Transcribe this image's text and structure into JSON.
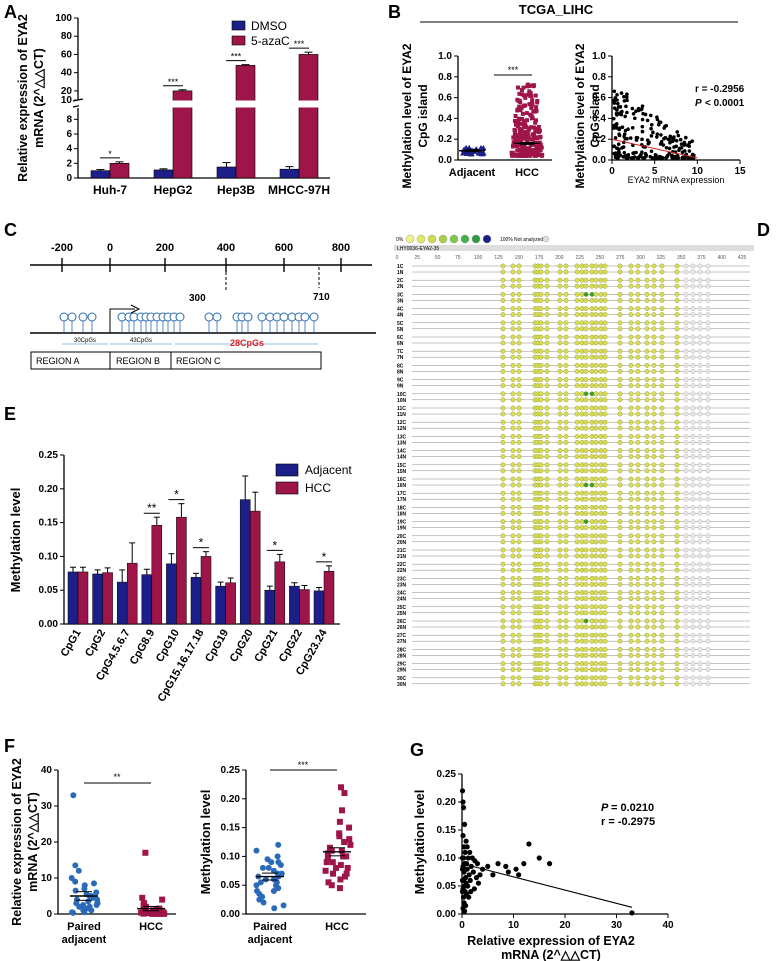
{
  "panel_labels": [
    "A",
    "B",
    "C",
    "D",
    "E",
    "F",
    "G"
  ],
  "colors": {
    "blue": "#1c1f8a",
    "red": "#9e1549",
    "dot_fill": "#d9dd55",
    "dot_edge": "#8a8f2a",
    "green": "#33a02c",
    "grey": "#bbbbbb"
  },
  "chart_data": [
    {
      "id": "A",
      "type": "bar",
      "categories": [
        "Huh-7",
        "HepG2",
        "Hep3B",
        "MHCC-97H"
      ],
      "series": [
        {
          "name": "DMSO",
          "values": [
            1.0,
            1.1,
            1.5,
            1.2
          ],
          "errors": [
            0.15,
            0.15,
            0.6,
            0.35
          ]
        },
        {
          "name": "5-azaC",
          "values": [
            2.0,
            20,
            48,
            60
          ],
          "errors": [
            0.2,
            1.2,
            0.8,
            2.5
          ]
        }
      ],
      "significance": [
        "*",
        "***",
        "***",
        "***"
      ],
      "ylabel": "Relative expression of EYA2 mRNA (2^△△CT)",
      "yticks_low": [
        "0",
        "2",
        "4",
        "6",
        "8"
      ],
      "yticks_high": [
        "10",
        "20",
        "40",
        "60",
        "80",
        "100"
      ],
      "axis_break": [
        8,
        10
      ],
      "ylim": [
        0,
        100
      ]
    },
    {
      "id": "B1",
      "type": "scatter",
      "title": "TCGA_LIHC",
      "categories": [
        "Adjacent",
        "HCC"
      ],
      "means": [
        0.09,
        0.16
      ],
      "sems": [
        0.01,
        0.01
      ],
      "ylabel": "Methylation level of EYA2 CpG island",
      "yticks": [
        "0.0",
        "0.2",
        "0.4",
        "0.6",
        "0.8",
        "1.0"
      ],
      "ylim": [
        0,
        1.0
      ],
      "significance": "***"
    },
    {
      "id": "B2",
      "type": "scatter",
      "xlabel": "EYA2 mRNA expression",
      "ylabel": "Methylation level of EYA2 CpG island",
      "xticks": [
        "0",
        "5",
        "10",
        "15"
      ],
      "yticks": [
        "0.0",
        "0.2",
        "0.4",
        "0.6",
        "0.8",
        "1.0"
      ],
      "xlim": [
        0,
        15
      ],
      "ylim": [
        0,
        1.0
      ],
      "fit_line": [
        [
          0,
          0.2
        ],
        [
          10,
          0.02
        ]
      ],
      "stat_r": "r = -0.2956",
      "stat_p_label": "P",
      "stat_p_value": "< 0.0001"
    },
    {
      "id": "E",
      "type": "bar",
      "categories": [
        "CpG1",
        "CpG2",
        "CpG4.5.6.7",
        "CpG8.9",
        "CpG10",
        "CpG15.16.17.18",
        "CpG19",
        "CpG20",
        "CpG21",
        "CpG22",
        "CpG23.24"
      ],
      "series": [
        {
          "name": "Adjacent",
          "values": [
            0.077,
            0.074,
            0.062,
            0.073,
            0.089,
            0.069,
            0.056,
            0.184,
            0.05,
            0.056,
            0.049
          ],
          "errors": [
            0.007,
            0.006,
            0.018,
            0.008,
            0.015,
            0.006,
            0.006,
            0.035,
            0.006,
            0.005,
            0.005
          ]
        },
        {
          "name": "HCC",
          "values": [
            0.077,
            0.076,
            0.09,
            0.146,
            0.158,
            0.1,
            0.061,
            0.167,
            0.092,
            0.051,
            0.078
          ],
          "errors": [
            0.007,
            0.007,
            0.03,
            0.012,
            0.02,
            0.007,
            0.007,
            0.028,
            0.011,
            0.006,
            0.008
          ]
        }
      ],
      "significance": [
        "",
        "",
        "",
        "**",
        "*",
        "*",
        "",
        "",
        "*",
        "",
        "*"
      ],
      "ylabel": "Methylation level",
      "yticks": [
        "0.00",
        "0.05",
        "0.10",
        "0.15",
        "0.20",
        "0.25"
      ],
      "ylim": [
        0,
        0.25
      ]
    },
    {
      "id": "F1",
      "type": "scatter",
      "categories": [
        "Paired adjacent",
        "HCC"
      ],
      "means": [
        5.0,
        1.5
      ],
      "sems": [
        1.2,
        0.6
      ],
      "ylabel": "Relative expression of EYA2 mRNA (2^△△CT)",
      "yticks": [
        "0",
        "10",
        "20",
        "30",
        "40"
      ],
      "ylim": [
        0,
        40
      ],
      "significance": "**"
    },
    {
      "id": "F2",
      "type": "scatter",
      "categories": [
        "Paired adjacent",
        "HCC"
      ],
      "means": [
        0.065,
        0.108
      ],
      "sems": [
        0.006,
        0.007
      ],
      "ylabel": "Methylation level",
      "yticks": [
        "0.00",
        "0.05",
        "0.10",
        "0.15",
        "0.20",
        "0.25"
      ],
      "ylim": [
        0,
        0.25
      ],
      "significance": "***"
    },
    {
      "id": "G",
      "type": "scatter",
      "xlabel": "Relative expression of EYA2 mRNA (2^△△CT)",
      "ylabel": "Methylation level",
      "xticks": [
        "0",
        "10",
        "20",
        "30",
        "40"
      ],
      "yticks": [
        "0.00",
        "0.05",
        "0.10",
        "0.15",
        "0.20",
        "0.25"
      ],
      "xlim": [
        0,
        40
      ],
      "ylim": [
        0,
        0.25
      ],
      "fit_line": [
        [
          0,
          0.09
        ],
        [
          33,
          0.012
        ]
      ],
      "stat_p_label": "P",
      "stat_p_value": "= 0.0210",
      "stat_r": "r = -0.2975"
    }
  ],
  "panel_c": {
    "axis_ticks": [
      "-200",
      "0",
      "200",
      "400",
      "600",
      "800"
    ],
    "marker_300": "300",
    "marker_710": "710",
    "region_counts": [
      "30CpGs",
      "43CpGs",
      "28CpGs"
    ],
    "regions": [
      "REGION A",
      "REGION B",
      "REGION C"
    ]
  },
  "panel_d": {
    "legend_start": "0%",
    "legend_end": "100%",
    "legend_na": "Not analyzed",
    "gene_label": "LHY0036-EYA2-35",
    "scale": [
      "0",
      "25",
      "50",
      "75",
      "100",
      "125",
      "150",
      "175",
      "200",
      "225",
      "250",
      "275",
      "300",
      "325",
      "350",
      "375",
      "400",
      "425"
    ],
    "rows": [
      "1C",
      "1N",
      "2C",
      "2N",
      "3C",
      "3N",
      "4C",
      "4N",
      "5C",
      "5N",
      "6C",
      "6N",
      "7C",
      "7N",
      "8C",
      "8N",
      "9C",
      "9N",
      "10C",
      "10N",
      "11C",
      "11N",
      "12C",
      "12N",
      "13C",
      "13N",
      "14C",
      "14N",
      "15C",
      "15N",
      "16C",
      "16N",
      "17C",
      "17N",
      "18C",
      "18N",
      "19C",
      "19N",
      "20C",
      "20N",
      "21C",
      "21N",
      "22C",
      "22N",
      "23C",
      "23N",
      "24C",
      "24N",
      "25C",
      "25N",
      "26C",
      "26N",
      "27C",
      "27N",
      "28C",
      "28N",
      "29C",
      "29N",
      "30C",
      "30N"
    ]
  }
}
